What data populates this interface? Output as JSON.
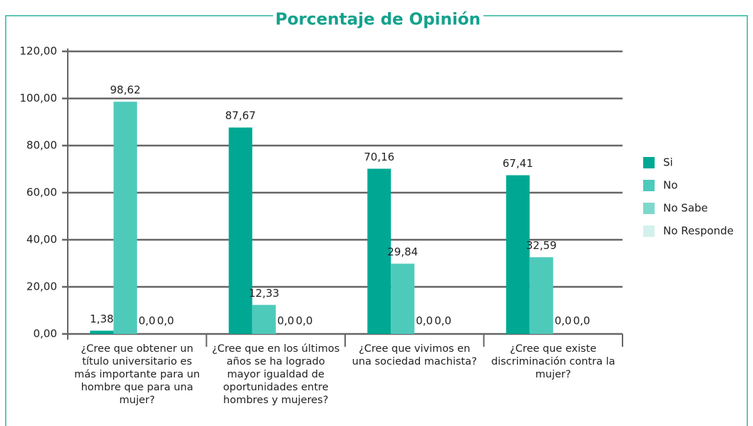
{
  "chart_data": {
    "type": "bar",
    "title": "Porcentaje de Opinión",
    "categories": [
      "¿Cree que obtener un título universitario es más importante para un hombre que para una mujer?",
      "¿Cree que en los últimos años se ha logrado mayor igualdad de oportunidades entre hombres y mujeres?",
      "¿Cree que vivimos en una sociedad machista?",
      "¿Cree que existe discriminación contra la mujer?"
    ],
    "series": [
      {
        "name": "Si",
        "color": "#00a893",
        "values": [
          1.38,
          87.67,
          70.16,
          67.41
        ],
        "value_labels": [
          "1,38",
          "87,67",
          "70,16",
          "67,41"
        ]
      },
      {
        "name": "No",
        "color": "#4ecabb",
        "values": [
          98.62,
          12.33,
          29.84,
          32.59
        ],
        "value_labels": [
          "98,62",
          "12,33",
          "29,84",
          "32,59"
        ]
      },
      {
        "name": "No Sabe",
        "color": "#7dd8cc",
        "values": [
          0,
          0,
          0,
          0
        ],
        "value_labels": [
          "0,0",
          "0,0",
          "0,0",
          "0,0"
        ]
      },
      {
        "name": "No Responde",
        "color": "#d3f1ec",
        "values": [
          0,
          0,
          0,
          0
        ],
        "value_labels": [
          "0,0",
          "0,0",
          "0,0",
          "0,0"
        ]
      }
    ],
    "ylim": [
      0,
      120
    ],
    "yticks": [
      {
        "value": 0,
        "label": "0,00"
      },
      {
        "value": 20,
        "label": "20,00"
      },
      {
        "value": 40,
        "label": "40,00"
      },
      {
        "value": 60,
        "label": "60,00"
      },
      {
        "value": 80,
        "label": "80,00"
      },
      {
        "value": 100,
        "label": "100,00"
      },
      {
        "value": 120,
        "label": "120,00"
      }
    ],
    "grid": true,
    "legend": "right"
  }
}
